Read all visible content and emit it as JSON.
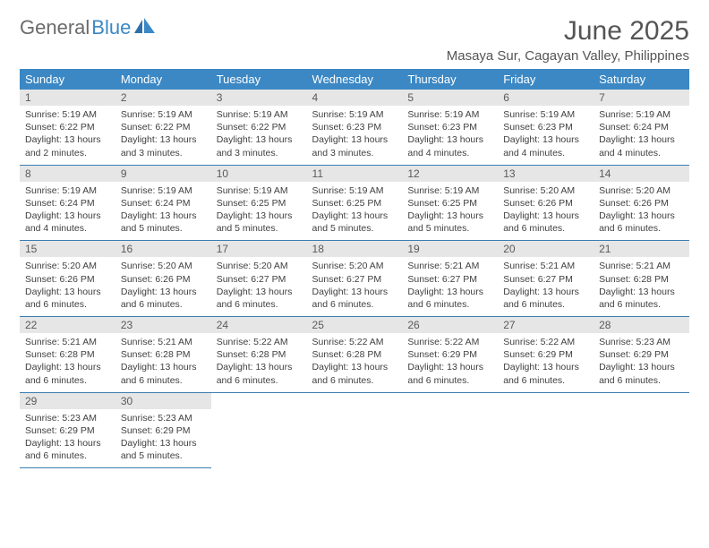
{
  "logo": {
    "text1": "General",
    "text2": "Blue"
  },
  "title": "June 2025",
  "subtitle": "Masaya Sur, Cagayan Valley, Philippines",
  "day_headers": [
    "Sunday",
    "Monday",
    "Tuesday",
    "Wednesday",
    "Thursday",
    "Friday",
    "Saturday"
  ],
  "colors": {
    "header_bg": "#3b88c4",
    "header_text": "#ffffff",
    "daynum_bg": "#e6e6e6",
    "rule": "#3b7db0",
    "logo_gray": "#6b6b6b",
    "logo_blue": "#3b88c4"
  },
  "weeks": [
    [
      {
        "n": "1",
        "sr": "5:19 AM",
        "ss": "6:22 PM",
        "dl": "13 hours and 2 minutes."
      },
      {
        "n": "2",
        "sr": "5:19 AM",
        "ss": "6:22 PM",
        "dl": "13 hours and 3 minutes."
      },
      {
        "n": "3",
        "sr": "5:19 AM",
        "ss": "6:22 PM",
        "dl": "13 hours and 3 minutes."
      },
      {
        "n": "4",
        "sr": "5:19 AM",
        "ss": "6:23 PM",
        "dl": "13 hours and 3 minutes."
      },
      {
        "n": "5",
        "sr": "5:19 AM",
        "ss": "6:23 PM",
        "dl": "13 hours and 4 minutes."
      },
      {
        "n": "6",
        "sr": "5:19 AM",
        "ss": "6:23 PM",
        "dl": "13 hours and 4 minutes."
      },
      {
        "n": "7",
        "sr": "5:19 AM",
        "ss": "6:24 PM",
        "dl": "13 hours and 4 minutes."
      }
    ],
    [
      {
        "n": "8",
        "sr": "5:19 AM",
        "ss": "6:24 PM",
        "dl": "13 hours and 4 minutes."
      },
      {
        "n": "9",
        "sr": "5:19 AM",
        "ss": "6:24 PM",
        "dl": "13 hours and 5 minutes."
      },
      {
        "n": "10",
        "sr": "5:19 AM",
        "ss": "6:25 PM",
        "dl": "13 hours and 5 minutes."
      },
      {
        "n": "11",
        "sr": "5:19 AM",
        "ss": "6:25 PM",
        "dl": "13 hours and 5 minutes."
      },
      {
        "n": "12",
        "sr": "5:19 AM",
        "ss": "6:25 PM",
        "dl": "13 hours and 5 minutes."
      },
      {
        "n": "13",
        "sr": "5:20 AM",
        "ss": "6:26 PM",
        "dl": "13 hours and 6 minutes."
      },
      {
        "n": "14",
        "sr": "5:20 AM",
        "ss": "6:26 PM",
        "dl": "13 hours and 6 minutes."
      }
    ],
    [
      {
        "n": "15",
        "sr": "5:20 AM",
        "ss": "6:26 PM",
        "dl": "13 hours and 6 minutes."
      },
      {
        "n": "16",
        "sr": "5:20 AM",
        "ss": "6:26 PM",
        "dl": "13 hours and 6 minutes."
      },
      {
        "n": "17",
        "sr": "5:20 AM",
        "ss": "6:27 PM",
        "dl": "13 hours and 6 minutes."
      },
      {
        "n": "18",
        "sr": "5:20 AM",
        "ss": "6:27 PM",
        "dl": "13 hours and 6 minutes."
      },
      {
        "n": "19",
        "sr": "5:21 AM",
        "ss": "6:27 PM",
        "dl": "13 hours and 6 minutes."
      },
      {
        "n": "20",
        "sr": "5:21 AM",
        "ss": "6:27 PM",
        "dl": "13 hours and 6 minutes."
      },
      {
        "n": "21",
        "sr": "5:21 AM",
        "ss": "6:28 PM",
        "dl": "13 hours and 6 minutes."
      }
    ],
    [
      {
        "n": "22",
        "sr": "5:21 AM",
        "ss": "6:28 PM",
        "dl": "13 hours and 6 minutes."
      },
      {
        "n": "23",
        "sr": "5:21 AM",
        "ss": "6:28 PM",
        "dl": "13 hours and 6 minutes."
      },
      {
        "n": "24",
        "sr": "5:22 AM",
        "ss": "6:28 PM",
        "dl": "13 hours and 6 minutes."
      },
      {
        "n": "25",
        "sr": "5:22 AM",
        "ss": "6:28 PM",
        "dl": "13 hours and 6 minutes."
      },
      {
        "n": "26",
        "sr": "5:22 AM",
        "ss": "6:29 PM",
        "dl": "13 hours and 6 minutes."
      },
      {
        "n": "27",
        "sr": "5:22 AM",
        "ss": "6:29 PM",
        "dl": "13 hours and 6 minutes."
      },
      {
        "n": "28",
        "sr": "5:23 AM",
        "ss": "6:29 PM",
        "dl": "13 hours and 6 minutes."
      }
    ],
    [
      {
        "n": "29",
        "sr": "5:23 AM",
        "ss": "6:29 PM",
        "dl": "13 hours and 6 minutes."
      },
      {
        "n": "30",
        "sr": "5:23 AM",
        "ss": "6:29 PM",
        "dl": "13 hours and 5 minutes."
      },
      null,
      null,
      null,
      null,
      null
    ]
  ],
  "labels": {
    "sunrise": "Sunrise: ",
    "sunset": "Sunset: ",
    "daylight": "Daylight: "
  }
}
